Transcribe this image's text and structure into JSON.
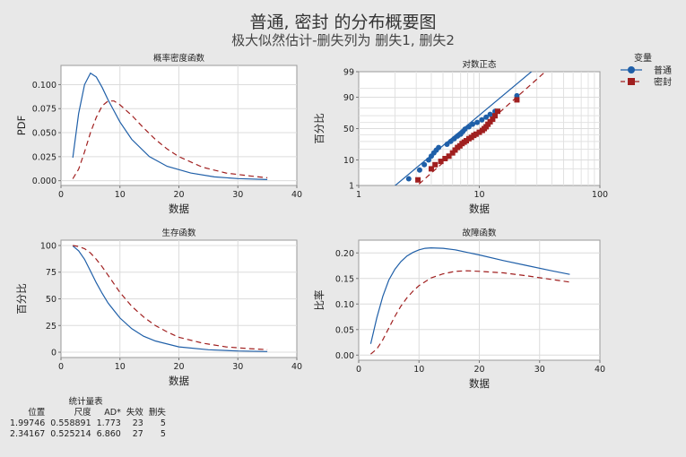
{
  "title": "普通, 密封 的分布概要图",
  "subtitle": "极大似然估计-删失列为 删失1, 删失2",
  "legend": {
    "title": "变量",
    "entries": [
      {
        "label": "普通",
        "color": "#1f5fa8",
        "marker": "circle",
        "dash": "solid"
      },
      {
        "label": "密封",
        "color": "#a01f1f",
        "marker": "square",
        "dash": "dashed"
      }
    ]
  },
  "stats_table": {
    "caption": "统计量表",
    "headers": [
      "位置",
      "尺度",
      "AD*",
      "失效",
      "删失"
    ],
    "rows": [
      [
        "1.99746",
        "0.558891",
        "1.773",
        "23",
        "5"
      ],
      [
        "2.34167",
        "0.525214",
        "6.860",
        "27",
        "5"
      ]
    ]
  },
  "chart_data": [
    {
      "type": "line",
      "title": "概率密度函数",
      "xlabel": "数据",
      "ylabel": "PDF",
      "xlim": [
        0,
        40
      ],
      "ylim": [
        -0.005,
        0.12
      ],
      "xticks": [
        0,
        10,
        20,
        30,
        40
      ],
      "yticks": [
        0,
        0.025,
        0.05,
        0.075,
        0.1
      ],
      "ytick_labels": [
        "0.000",
        "0.025",
        "0.050",
        "0.075",
        "0.100"
      ],
      "series": [
        {
          "name": "普通",
          "x": [
            2,
            3,
            4,
            5,
            6,
            7,
            8,
            10,
            12,
            15,
            18,
            22,
            26,
            30,
            35
          ],
          "y": [
            0.024,
            0.07,
            0.1,
            0.112,
            0.108,
            0.097,
            0.084,
            0.061,
            0.043,
            0.025,
            0.015,
            0.008,
            0.004,
            0.0022,
            0.0012
          ]
        },
        {
          "name": "密封",
          "x": [
            2,
            3,
            4,
            5,
            6,
            7,
            8,
            9,
            10,
            12,
            14,
            16,
            18,
            20,
            24,
            28,
            32,
            35
          ],
          "y": [
            0.002,
            0.012,
            0.03,
            0.05,
            0.066,
            0.078,
            0.083,
            0.083,
            0.079,
            0.068,
            0.055,
            0.043,
            0.033,
            0.025,
            0.014,
            0.008,
            0.005,
            0.003
          ]
        }
      ]
    },
    {
      "type": "scatter",
      "title": "对数正态",
      "xlabel": "数据",
      "ylabel": "百分比",
      "xscale": "log",
      "yscale": "lognormal-probability",
      "xlim": [
        1,
        100
      ],
      "ylim": [
        1,
        99
      ],
      "xticks": [
        1,
        10,
        100
      ],
      "yticks": [
        1,
        10,
        50,
        90,
        99
      ],
      "series": [
        {
          "name": "普通",
          "x": [
            2.6,
            3.2,
            3.5,
            3.8,
            4.0,
            4.2,
            4.4,
            4.6,
            5.4,
            5.8,
            6.2,
            6.6,
            7.0,
            7.3,
            7.6,
            8.2,
            8.8,
            9.6,
            10.5,
            11.4,
            12.3,
            13.5,
            20.5
          ],
          "y": [
            2,
            4.5,
            7,
            10,
            13,
            16,
            19,
            22,
            26,
            30,
            34,
            38,
            41,
            45,
            49,
            53,
            57,
            60,
            64,
            68,
            72,
            76,
            91
          ]
        },
        {
          "name": "密封",
          "x": [
            3.1,
            4.0,
            4.3,
            4.8,
            5.2,
            5.6,
            6.0,
            6.3,
            6.6,
            6.9,
            7.2,
            7.5,
            7.8,
            8.2,
            8.6,
            9.0,
            9.4,
            10.0,
            10.6,
            11.0,
            11.4,
            11.8,
            12.3,
            12.9,
            13.5,
            14.2,
            20.5
          ],
          "y": [
            1.8,
            5,
            7,
            9,
            11,
            13,
            16,
            19,
            22,
            24,
            27,
            29,
            31,
            34,
            36,
            39,
            41,
            44,
            47,
            50,
            53,
            57,
            61,
            65,
            70,
            76,
            88
          ]
        }
      ],
      "fit_lines": [
        {
          "name": "普通",
          "location": 1.99746,
          "scale": 0.558891
        },
        {
          "name": "密封",
          "location": 2.34167,
          "scale": 0.525214
        }
      ]
    },
    {
      "type": "line",
      "title": "生存函数",
      "xlabel": "数据",
      "ylabel": "百分比",
      "xlim": [
        0,
        40
      ],
      "ylim": [
        -5,
        105
      ],
      "xticks": [
        0,
        10,
        20,
        30,
        40
      ],
      "yticks": [
        0,
        25,
        50,
        75,
        100
      ],
      "series": [
        {
          "name": "普通",
          "x": [
            2,
            3,
            4,
            5,
            6,
            7,
            8,
            10,
            12,
            14,
            16,
            20,
            25,
            30,
            35
          ],
          "y": [
            99.6,
            95,
            87,
            76,
            65,
            55,
            46,
            32,
            22,
            15,
            10.5,
            5,
            2.3,
            1.1,
            0.6
          ]
        },
        {
          "name": "密封",
          "x": [
            2,
            3,
            4,
            5,
            6,
            7,
            8,
            10,
            12,
            14,
            16,
            18,
            20,
            24,
            28,
            32,
            35
          ],
          "y": [
            100,
            99,
            97,
            93,
            87,
            80,
            72,
            56,
            43,
            33,
            25,
            19,
            14,
            8.5,
            5,
            3.3,
            2.4
          ]
        }
      ]
    },
    {
      "type": "line",
      "title": "故障函数",
      "xlabel": "数据",
      "ylabel": "比率",
      "xlim": [
        0,
        40
      ],
      "ylim": [
        -0.01,
        0.225
      ],
      "xticks": [
        0,
        10,
        20,
        30,
        40
      ],
      "yticks": [
        0,
        0.05,
        0.1,
        0.15,
        0.2
      ],
      "ytick_labels": [
        "0.00",
        "0.05",
        "0.10",
        "0.15",
        "0.20"
      ],
      "series": [
        {
          "name": "普通",
          "x": [
            2,
            3,
            4,
            5,
            6,
            7,
            8,
            9,
            10,
            11,
            12,
            14,
            16,
            18,
            20,
            24,
            28,
            32,
            35
          ],
          "y": [
            0.022,
            0.073,
            0.115,
            0.147,
            0.168,
            0.183,
            0.194,
            0.201,
            0.206,
            0.209,
            0.21,
            0.209,
            0.206,
            0.201,
            0.196,
            0.185,
            0.175,
            0.165,
            0.158
          ]
        },
        {
          "name": "密封",
          "x": [
            2,
            3,
            4,
            5,
            6,
            7,
            8,
            9,
            10,
            12,
            14,
            16,
            18,
            20,
            24,
            28,
            32,
            35
          ],
          "y": [
            0.002,
            0.012,
            0.03,
            0.053,
            0.076,
            0.096,
            0.112,
            0.125,
            0.136,
            0.151,
            0.159,
            0.164,
            0.165,
            0.164,
            0.161,
            0.155,
            0.148,
            0.143
          ]
        }
      ]
    }
  ]
}
